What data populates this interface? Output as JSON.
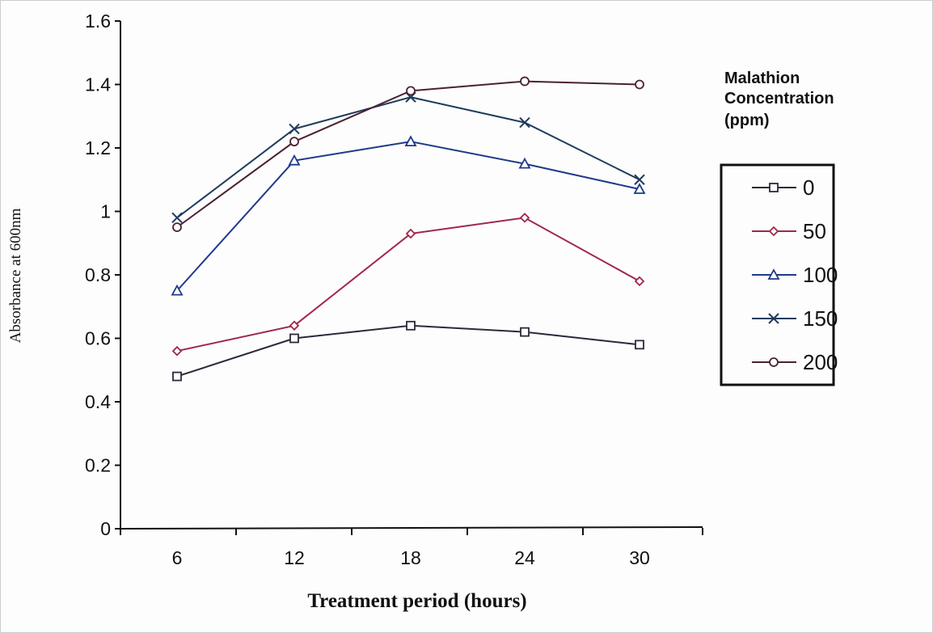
{
  "chart_data": {
    "type": "line",
    "xlabel": "Treatment period (hours)",
    "ylabel": "Absorbance at 600nm",
    "x": [
      6,
      12,
      18,
      24,
      30
    ],
    "ylim": [
      0,
      1.6
    ],
    "yticks": [
      "0",
      "0.2",
      "0.4",
      "0.6",
      "0.8",
      "1",
      "1.2",
      "1.4",
      "1.6"
    ],
    "xticks": [
      "6",
      "12",
      "18",
      "24",
      "30"
    ],
    "grid": false,
    "legend_title": [
      "Malathion",
      "Concentration",
      "(ppm)"
    ],
    "legend_placement": "right",
    "series": [
      {
        "name": "0",
        "marker": "square",
        "color": "#2a2a3a",
        "values": [
          0.48,
          0.6,
          0.64,
          0.62,
          0.58
        ]
      },
      {
        "name": "50",
        "marker": "diamond",
        "color": "#a0284a",
        "values": [
          0.56,
          0.64,
          0.93,
          0.98,
          0.78
        ]
      },
      {
        "name": "100",
        "marker": "triangle",
        "color": "#1f3a8a",
        "values": [
          0.75,
          1.16,
          1.22,
          1.15,
          1.07
        ]
      },
      {
        "name": "150",
        "marker": "x",
        "color": "#1f3b5c",
        "values": [
          0.98,
          1.26,
          1.36,
          1.28,
          1.1
        ]
      },
      {
        "name": "200",
        "marker": "circle",
        "color": "#4a2233",
        "values": [
          0.95,
          1.22,
          1.38,
          1.41,
          1.4
        ]
      }
    ]
  }
}
